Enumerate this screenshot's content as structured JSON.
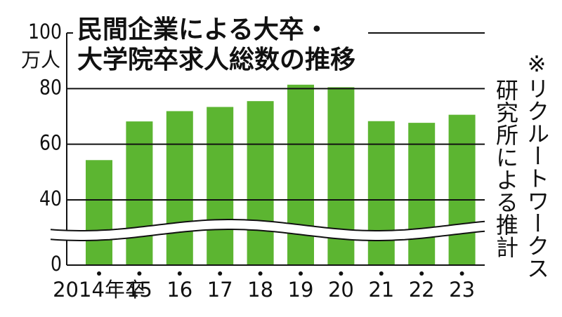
{
  "chart_data": {
    "type": "bar",
    "title": [
      "民間企業による大卒・",
      "大学院卒求人総数の推移"
    ],
    "y_unit": "万人",
    "note": [
      "※リクルートワークス",
      "研究所による推計"
    ],
    "categories": [
      "2014年卒",
      "15",
      "16",
      "17",
      "18",
      "19",
      "20",
      "21",
      "22",
      "23"
    ],
    "values": [
      54.3,
      68.2,
      71.9,
      73.4,
      75.5,
      81.4,
      80.5,
      68.3,
      67.7,
      70.6
    ],
    "color": "#5cb531",
    "ylim": [
      0,
      100
    ],
    "yticks": [
      0,
      40,
      60,
      80,
      100
    ],
    "axis_break": true,
    "grid": true
  }
}
